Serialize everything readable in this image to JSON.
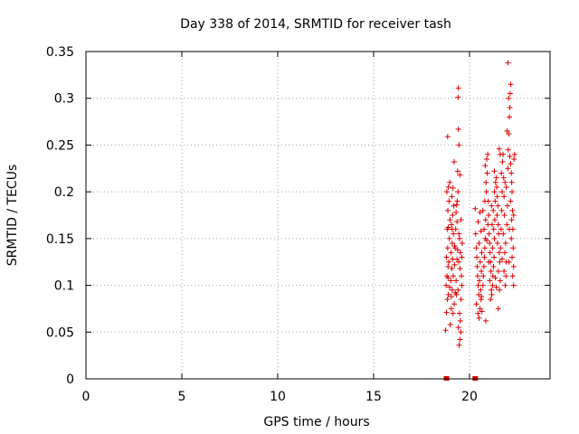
{
  "chart_data": {
    "type": "scatter",
    "title": "Day 338 of 2014, SRMTID for receiver tash",
    "xlabel": "GPS time / hours",
    "ylabel": "SRMTID / TECUs",
    "xlim": [
      0,
      24.2
    ],
    "ylim": [
      0,
      0.35
    ],
    "xticks": [
      0,
      5,
      10,
      15,
      20
    ],
    "xtick_labels": [
      "0",
      "5",
      "10",
      "15",
      "20"
    ],
    "yticks": [
      0,
      0.05,
      0.1,
      0.15,
      0.2,
      0.25,
      0.3,
      0.35
    ],
    "ytick_labels": [
      "0",
      "0.05",
      "0.1",
      "0.15",
      "0.2",
      "0.25",
      "0.3",
      "0.35"
    ],
    "grid": true,
    "marker": "+",
    "color": "#dd0000",
    "series": [
      {
        "name": "SRMTID",
        "points": [
          [
            18.75,
            0.052
          ],
          [
            18.8,
            0.071
          ],
          [
            18.85,
            0.085
          ],
          [
            18.9,
            0.09
          ],
          [
            18.78,
            0.1
          ],
          [
            18.82,
            0.11
          ],
          [
            18.88,
            0.12
          ],
          [
            18.92,
            0.125
          ],
          [
            18.8,
            0.13
          ],
          [
            18.86,
            0.14
          ],
          [
            18.95,
            0.15
          ],
          [
            18.84,
            0.16
          ],
          [
            18.9,
            0.162
          ],
          [
            18.98,
            0.17
          ],
          [
            18.87,
            0.18
          ],
          [
            18.93,
            0.19
          ],
          [
            18.82,
            0.2
          ],
          [
            18.9,
            0.205
          ],
          [
            18.97,
            0.21
          ],
          [
            18.86,
            0.259
          ],
          [
            19.0,
            0.058
          ],
          [
            19.05,
            0.075
          ],
          [
            19.1,
            0.095
          ],
          [
            19.02,
            0.105
          ],
          [
            19.08,
            0.118
          ],
          [
            19.12,
            0.128
          ],
          [
            19.04,
            0.135
          ],
          [
            19.1,
            0.145
          ],
          [
            19.16,
            0.155
          ],
          [
            19.06,
            0.165
          ],
          [
            19.12,
            0.175
          ],
          [
            19.18,
            0.185
          ],
          [
            19.08,
            0.195
          ],
          [
            19.14,
            0.204
          ],
          [
            19.2,
            0.232
          ],
          [
            19.15,
            0.11
          ],
          [
            19.22,
            0.122
          ],
          [
            19.25,
            0.14
          ],
          [
            19.28,
            0.16
          ],
          [
            19.3,
            0.178
          ],
          [
            19.33,
            0.186
          ],
          [
            19.36,
            0.19
          ],
          [
            19.4,
            0.2
          ],
          [
            19.38,
            0.222
          ],
          [
            19.45,
            0.25
          ],
          [
            19.42,
            0.267
          ],
          [
            19.4,
            0.301
          ],
          [
            19.42,
            0.311
          ],
          [
            19.5,
            0.218
          ],
          [
            19.35,
            0.168
          ],
          [
            19.48,
            0.07
          ],
          [
            19.52,
            0.062
          ],
          [
            19.55,
            0.05
          ],
          [
            19.5,
            0.042
          ],
          [
            19.46,
            0.036
          ],
          [
            19.42,
            0.055
          ],
          [
            19.56,
            0.085
          ],
          [
            19.4,
            0.095
          ],
          [
            19.6,
            0.1
          ],
          [
            19.58,
            0.11
          ],
          [
            19.44,
            0.125
          ],
          [
            19.52,
            0.135
          ],
          [
            19.48,
            0.15
          ],
          [
            19.56,
            0.17
          ],
          [
            19.3,
            0.105
          ],
          [
            19.26,
            0.092
          ],
          [
            19.2,
            0.08
          ],
          [
            19.14,
            0.07
          ],
          [
            19.35,
            0.128
          ],
          [
            19.6,
            0.13
          ],
          [
            19.62,
            0.145
          ],
          [
            19.45,
            0.155
          ],
          [
            19.32,
            0.09
          ],
          [
            19.22,
            0.142
          ],
          [
            19.1,
            0.16
          ],
          [
            18.96,
            0.098
          ],
          [
            18.88,
            0.108
          ],
          [
            19.06,
            0.088
          ],
          [
            19.5,
            0.118
          ],
          [
            19.38,
            0.138
          ],
          [
            20.3,
            0.182
          ],
          [
            20.32,
            0.155
          ],
          [
            20.35,
            0.14
          ],
          [
            20.38,
            0.13
          ],
          [
            20.4,
            0.12
          ],
          [
            20.42,
            0.11
          ],
          [
            20.45,
            0.1
          ],
          [
            20.48,
            0.09
          ],
          [
            20.36,
            0.08
          ],
          [
            20.44,
            0.07
          ],
          [
            20.5,
            0.065
          ],
          [
            20.55,
            0.075
          ],
          [
            20.6,
            0.085
          ],
          [
            20.58,
            0.095
          ],
          [
            20.52,
            0.105
          ],
          [
            20.62,
            0.115
          ],
          [
            20.56,
            0.125
          ],
          [
            20.64,
            0.135
          ],
          [
            20.5,
            0.145
          ],
          [
            20.6,
            0.158
          ],
          [
            20.7,
            0.1
          ],
          [
            20.72,
            0.11
          ],
          [
            20.75,
            0.12
          ],
          [
            20.78,
            0.13
          ],
          [
            20.8,
            0.14
          ],
          [
            20.82,
            0.15
          ],
          [
            20.76,
            0.16
          ],
          [
            20.84,
            0.17
          ],
          [
            20.7,
            0.18
          ],
          [
            20.8,
            0.19
          ],
          [
            20.88,
            0.2
          ],
          [
            20.86,
            0.21
          ],
          [
            20.9,
            0.235
          ],
          [
            20.95,
            0.24
          ],
          [
            20.82,
            0.228
          ],
          [
            20.92,
            0.22
          ],
          [
            20.98,
            0.19
          ],
          [
            21.0,
            0.175
          ],
          [
            20.96,
            0.165
          ],
          [
            21.02,
            0.155
          ],
          [
            21.05,
            0.145
          ],
          [
            21.08,
            0.135
          ],
          [
            21.1,
            0.125
          ],
          [
            21.12,
            0.115
          ],
          [
            21.06,
            0.105
          ],
          [
            21.14,
            0.095
          ],
          [
            21.1,
            0.085
          ],
          [
            21.16,
            0.09
          ],
          [
            21.2,
            0.1
          ],
          [
            21.22,
            0.11
          ],
          [
            21.25,
            0.12
          ],
          [
            21.28,
            0.13
          ],
          [
            21.2,
            0.14
          ],
          [
            21.3,
            0.15
          ],
          [
            21.26,
            0.16
          ],
          [
            21.32,
            0.17
          ],
          [
            21.24,
            0.18
          ],
          [
            21.34,
            0.19
          ],
          [
            21.3,
            0.2
          ],
          [
            21.36,
            0.21
          ],
          [
            21.3,
            0.222
          ],
          [
            21.4,
            0.215
          ],
          [
            21.42,
            0.205
          ],
          [
            21.45,
            0.195
          ],
          [
            21.48,
            0.185
          ],
          [
            21.44,
            0.175
          ],
          [
            21.5,
            0.165
          ],
          [
            21.52,
            0.155
          ],
          [
            21.46,
            0.145
          ],
          [
            21.55,
            0.135
          ],
          [
            21.58,
            0.125
          ],
          [
            21.5,
            0.115
          ],
          [
            21.6,
            0.105
          ],
          [
            21.56,
            0.095
          ],
          [
            21.5,
            0.075
          ],
          [
            21.62,
            0.14
          ],
          [
            21.65,
            0.16
          ],
          [
            21.68,
            0.18
          ],
          [
            21.7,
            0.2
          ],
          [
            21.66,
            0.22
          ],
          [
            21.72,
            0.232
          ],
          [
            21.6,
            0.24
          ],
          [
            21.55,
            0.246
          ],
          [
            21.75,
            0.24
          ],
          [
            21.78,
            0.215
          ],
          [
            21.8,
            0.195
          ],
          [
            21.82,
            0.175
          ],
          [
            21.76,
            0.155
          ],
          [
            21.84,
            0.135
          ],
          [
            21.8,
            0.115
          ],
          [
            21.86,
            0.1
          ],
          [
            21.9,
            0.11
          ],
          [
            21.92,
            0.125
          ],
          [
            21.88,
            0.145
          ],
          [
            21.95,
            0.165
          ],
          [
            21.98,
            0.185
          ],
          [
            21.92,
            0.205
          ],
          [
            22.0,
            0.225
          ],
          [
            22.02,
            0.245
          ],
          [
            21.96,
            0.265
          ],
          [
            22.05,
            0.262
          ],
          [
            22.08,
            0.28
          ],
          [
            22.1,
            0.29
          ],
          [
            22.04,
            0.3
          ],
          [
            22.12,
            0.305
          ],
          [
            22.15,
            0.315
          ],
          [
            22.0,
            0.338
          ],
          [
            22.1,
            0.238
          ],
          [
            22.15,
            0.23
          ],
          [
            22.18,
            0.22
          ],
          [
            22.2,
            0.21
          ],
          [
            22.22,
            0.2
          ],
          [
            22.14,
            0.19
          ],
          [
            22.24,
            0.18
          ],
          [
            22.2,
            0.17
          ],
          [
            22.26,
            0.16
          ],
          [
            22.18,
            0.15
          ],
          [
            22.28,
            0.14
          ],
          [
            22.22,
            0.13
          ],
          [
            22.3,
            0.12
          ],
          [
            22.25,
            0.11
          ],
          [
            22.3,
            0.1
          ],
          [
            22.32,
            0.235
          ],
          [
            22.35,
            0.24
          ],
          [
            22.3,
            0.175
          ],
          [
            22.06,
            0.125
          ],
          [
            21.4,
            0.098
          ],
          [
            21.0,
            0.125
          ],
          [
            20.85,
            0.062
          ],
          [
            20.65,
            0.072
          ],
          [
            20.45,
            0.168
          ],
          [
            20.55,
            0.178
          ],
          [
            20.62,
            0.088
          ],
          [
            21.18,
            0.165
          ],
          [
            21.35,
            0.108
          ],
          [
            21.7,
            0.128
          ],
          [
            21.85,
            0.21
          ],
          [
            22.08,
            0.16
          ],
          [
            20.9,
            0.148
          ],
          [
            21.15,
            0.185
          ]
        ],
        "baseline_markers": [
          [
            18.8,
            0
          ],
          [
            20.3,
            0
          ]
        ]
      }
    ]
  }
}
